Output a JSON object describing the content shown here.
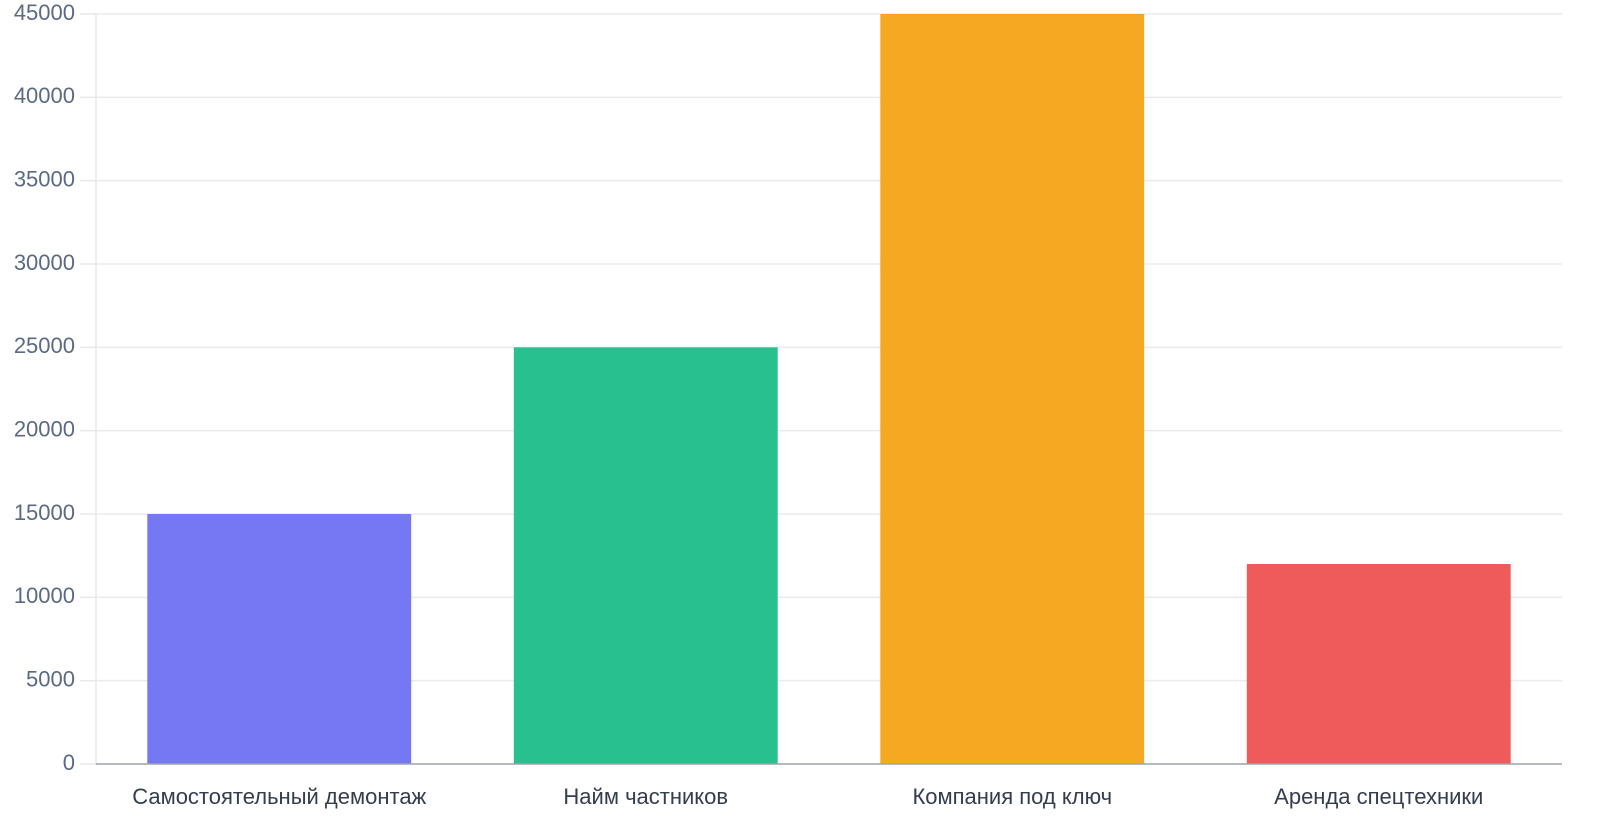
{
  "chart_data": {
    "type": "bar",
    "categories": [
      "Самостоятельный демонтаж",
      "Найм частников",
      "Компания под ключ",
      "Аренда спецтехники"
    ],
    "values": [
      15000,
      25000,
      45000,
      12000
    ],
    "colors": [
      "#7677f2",
      "#29c08f",
      "#f5a822",
      "#ef5a5a"
    ],
    "ylim": [
      0,
      45000
    ],
    "yticks": [
      0,
      5000,
      10000,
      15000,
      20000,
      25000,
      30000,
      35000,
      40000,
      45000
    ],
    "grid": true
  }
}
